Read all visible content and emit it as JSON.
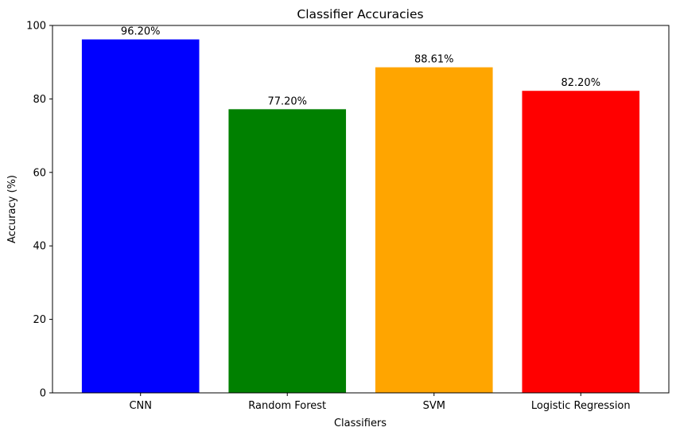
{
  "chart_data": {
    "type": "bar",
    "title": "Classifier Accuracies",
    "xlabel": "Classifiers",
    "ylabel": "Accuracy (%)",
    "categories": [
      "CNN",
      "Random Forest",
      "SVM",
      "Logistic Regression"
    ],
    "values": [
      96.2,
      77.2,
      88.61,
      82.2
    ],
    "data_labels": [
      "96.20%",
      "77.20%",
      "88.61%",
      "82.20%"
    ],
    "colors": [
      "#0000ff",
      "#008000",
      "#ffa500",
      "#ff0000"
    ],
    "ylim": [
      0,
      100
    ],
    "yticks": [
      0,
      20,
      40,
      60,
      80,
      100
    ],
    "grid": false,
    "legend": "none"
  }
}
